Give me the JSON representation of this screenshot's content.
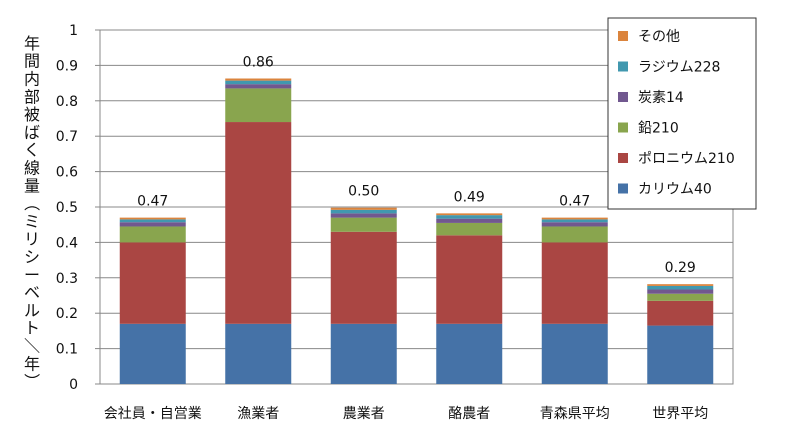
{
  "chart_data": {
    "type": "bar",
    "stacked": true,
    "ylabel": "年間内部被ばく線量（ミリシーベルト／年）",
    "ylim": [
      0,
      1
    ],
    "yticks": [
      "0",
      "0.1",
      "0.2",
      "0.3",
      "0.4",
      "0.5",
      "0.6",
      "0.7",
      "0.8",
      "0.9",
      "1"
    ],
    "grid": true,
    "legend": "top-right",
    "categories": [
      "会社員・自営業",
      "漁業者",
      "農業者",
      "酪農者",
      "青森県平均",
      "世界平均"
    ],
    "totals": [
      "0.47",
      "0.86",
      "0.50",
      "0.49",
      "0.47",
      "0.29"
    ],
    "series": [
      {
        "name": "カリウム40",
        "color": "#4572A7",
        "values": [
          0.17,
          0.17,
          0.17,
          0.17,
          0.17,
          0.165
        ]
      },
      {
        "name": "ポロニウム210",
        "color": "#AA4643",
        "values": [
          0.23,
          0.57,
          0.26,
          0.25,
          0.23,
          0.07
        ]
      },
      {
        "name": "鉛210",
        "color": "#89A54E",
        "values": [
          0.045,
          0.095,
          0.04,
          0.035,
          0.045,
          0.02
        ]
      },
      {
        "name": "炭素14",
        "color": "#71588F",
        "values": [
          0.012,
          0.012,
          0.012,
          0.012,
          0.012,
          0.012
        ]
      },
      {
        "name": "ラジウム228",
        "color": "#4198AF",
        "values": [
          0.008,
          0.01,
          0.01,
          0.01,
          0.008,
          0.01
        ]
      },
      {
        "name": "その他",
        "color": "#DB843D",
        "values": [
          0.005,
          0.006,
          0.006,
          0.005,
          0.005,
          0.005
        ]
      }
    ]
  }
}
